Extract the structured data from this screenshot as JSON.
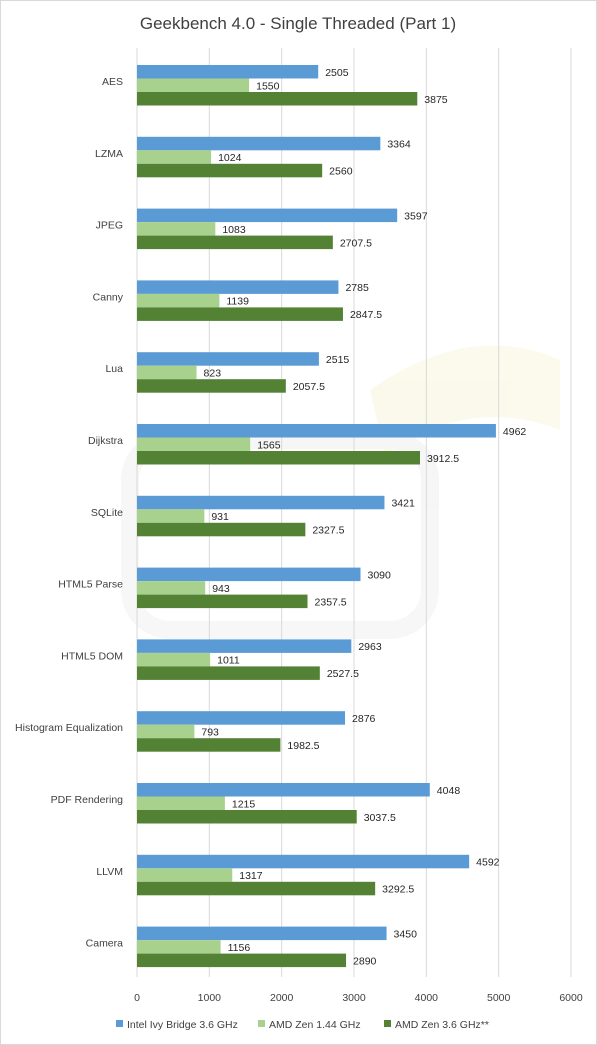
{
  "chart_data": {
    "type": "bar",
    "orientation": "horizontal",
    "title": "Geekbench 4.0 - Single Threaded (Part 1)",
    "xlabel": "",
    "ylabel": "",
    "xlim": [
      0,
      6000
    ],
    "xticks": [
      0,
      1000,
      2000,
      3000,
      4000,
      5000,
      6000
    ],
    "grid": "vertical",
    "legend": "bottom",
    "categories": [
      "AES",
      "LZMA",
      "JPEG",
      "Canny",
      "Lua",
      "Dijkstra",
      "SQLite",
      "HTML5 Parse",
      "HTML5 DOM",
      "Histogram Equalization",
      "PDF Rendering",
      "LLVM",
      "Camera"
    ],
    "series": [
      {
        "name": "Intel Ivy Bridge 3.6 GHz",
        "color": "#5b9bd5",
        "values": [
          2505,
          3364,
          3597,
          2785,
          2515,
          4962,
          3421,
          3090,
          2963,
          2876,
          4048,
          4592,
          3450
        ]
      },
      {
        "name": "AMD Zen 1.44 GHz",
        "color": "#a9d18e",
        "values": [
          1550,
          1024,
          1083,
          1139,
          823,
          1565,
          931,
          943,
          1011,
          793,
          1215,
          1317,
          1156
        ]
      },
      {
        "name": "AMD Zen 3.6 GHz**",
        "color": "#548235",
        "values": [
          3875,
          2560,
          2707.5,
          2847.5,
          2057.5,
          3912.5,
          2327.5,
          2357.5,
          2527.5,
          1982.5,
          3037.5,
          3292.5,
          2890
        ]
      }
    ]
  }
}
